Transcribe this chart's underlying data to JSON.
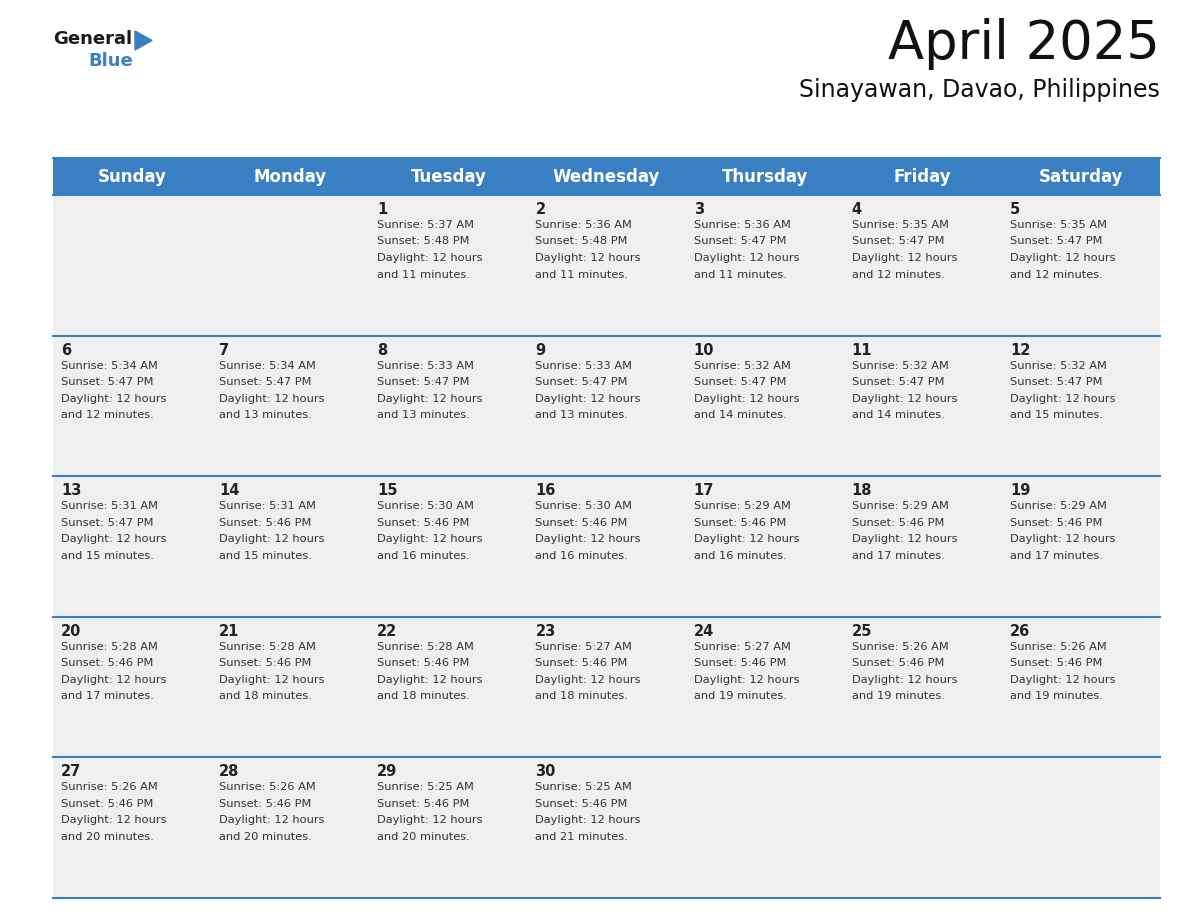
{
  "title": "April 2025",
  "subtitle": "Sinayawan, Davao, Philippines",
  "header_bg_color": "#3A7FC1",
  "header_text_color": "#FFFFFF",
  "cell_bg_color": "#EFEFEF",
  "day_number_color": "#222222",
  "cell_text_color": "#333333",
  "grid_line_color": "#3A7FC1",
  "days_of_week": [
    "Sunday",
    "Monday",
    "Tuesday",
    "Wednesday",
    "Thursday",
    "Friday",
    "Saturday"
  ],
  "calendar_data": [
    [
      {
        "day": "",
        "sunrise": "",
        "sunset": "",
        "daylight": ""
      },
      {
        "day": "",
        "sunrise": "",
        "sunset": "",
        "daylight": ""
      },
      {
        "day": "1",
        "sunrise": "5:37 AM",
        "sunset": "5:48 PM",
        "daylight": "12 hours and 11 minutes."
      },
      {
        "day": "2",
        "sunrise": "5:36 AM",
        "sunset": "5:48 PM",
        "daylight": "12 hours and 11 minutes."
      },
      {
        "day": "3",
        "sunrise": "5:36 AM",
        "sunset": "5:47 PM",
        "daylight": "12 hours and 11 minutes."
      },
      {
        "day": "4",
        "sunrise": "5:35 AM",
        "sunset": "5:47 PM",
        "daylight": "12 hours and 12 minutes."
      },
      {
        "day": "5",
        "sunrise": "5:35 AM",
        "sunset": "5:47 PM",
        "daylight": "12 hours and 12 minutes."
      }
    ],
    [
      {
        "day": "6",
        "sunrise": "5:34 AM",
        "sunset": "5:47 PM",
        "daylight": "12 hours and 12 minutes."
      },
      {
        "day": "7",
        "sunrise": "5:34 AM",
        "sunset": "5:47 PM",
        "daylight": "12 hours and 13 minutes."
      },
      {
        "day": "8",
        "sunrise": "5:33 AM",
        "sunset": "5:47 PM",
        "daylight": "12 hours and 13 minutes."
      },
      {
        "day": "9",
        "sunrise": "5:33 AM",
        "sunset": "5:47 PM",
        "daylight": "12 hours and 13 minutes."
      },
      {
        "day": "10",
        "sunrise": "5:32 AM",
        "sunset": "5:47 PM",
        "daylight": "12 hours and 14 minutes."
      },
      {
        "day": "11",
        "sunrise": "5:32 AM",
        "sunset": "5:47 PM",
        "daylight": "12 hours and 14 minutes."
      },
      {
        "day": "12",
        "sunrise": "5:32 AM",
        "sunset": "5:47 PM",
        "daylight": "12 hours and 15 minutes."
      }
    ],
    [
      {
        "day": "13",
        "sunrise": "5:31 AM",
        "sunset": "5:47 PM",
        "daylight": "12 hours and 15 minutes."
      },
      {
        "day": "14",
        "sunrise": "5:31 AM",
        "sunset": "5:46 PM",
        "daylight": "12 hours and 15 minutes."
      },
      {
        "day": "15",
        "sunrise": "5:30 AM",
        "sunset": "5:46 PM",
        "daylight": "12 hours and 16 minutes."
      },
      {
        "day": "16",
        "sunrise": "5:30 AM",
        "sunset": "5:46 PM",
        "daylight": "12 hours and 16 minutes."
      },
      {
        "day": "17",
        "sunrise": "5:29 AM",
        "sunset": "5:46 PM",
        "daylight": "12 hours and 16 minutes."
      },
      {
        "day": "18",
        "sunrise": "5:29 AM",
        "sunset": "5:46 PM",
        "daylight": "12 hours and 17 minutes."
      },
      {
        "day": "19",
        "sunrise": "5:29 AM",
        "sunset": "5:46 PM",
        "daylight": "12 hours and 17 minutes."
      }
    ],
    [
      {
        "day": "20",
        "sunrise": "5:28 AM",
        "sunset": "5:46 PM",
        "daylight": "12 hours and 17 minutes."
      },
      {
        "day": "21",
        "sunrise": "5:28 AM",
        "sunset": "5:46 PM",
        "daylight": "12 hours and 18 minutes."
      },
      {
        "day": "22",
        "sunrise": "5:28 AM",
        "sunset": "5:46 PM",
        "daylight": "12 hours and 18 minutes."
      },
      {
        "day": "23",
        "sunrise": "5:27 AM",
        "sunset": "5:46 PM",
        "daylight": "12 hours and 18 minutes."
      },
      {
        "day": "24",
        "sunrise": "5:27 AM",
        "sunset": "5:46 PM",
        "daylight": "12 hours and 19 minutes."
      },
      {
        "day": "25",
        "sunrise": "5:26 AM",
        "sunset": "5:46 PM",
        "daylight": "12 hours and 19 minutes."
      },
      {
        "day": "26",
        "sunrise": "5:26 AM",
        "sunset": "5:46 PM",
        "daylight": "12 hours and 19 minutes."
      }
    ],
    [
      {
        "day": "27",
        "sunrise": "5:26 AM",
        "sunset": "5:46 PM",
        "daylight": "12 hours and 20 minutes."
      },
      {
        "day": "28",
        "sunrise": "5:26 AM",
        "sunset": "5:46 PM",
        "daylight": "12 hours and 20 minutes."
      },
      {
        "day": "29",
        "sunrise": "5:25 AM",
        "sunset": "5:46 PM",
        "daylight": "12 hours and 20 minutes."
      },
      {
        "day": "30",
        "sunrise": "5:25 AM",
        "sunset": "5:46 PM",
        "daylight": "12 hours and 21 minutes."
      },
      {
        "day": "",
        "sunrise": "",
        "sunset": "",
        "daylight": ""
      },
      {
        "day": "",
        "sunrise": "",
        "sunset": "",
        "daylight": ""
      },
      {
        "day": "",
        "sunrise": "",
        "sunset": "",
        "daylight": ""
      }
    ]
  ],
  "logo_general_color": "#1A1A1A",
  "logo_blue_color": "#3A7FC1",
  "title_fontsize": 38,
  "subtitle_fontsize": 17,
  "header_fontsize": 12,
  "day_num_fontsize": 10.5,
  "cell_text_fontsize": 8.2
}
